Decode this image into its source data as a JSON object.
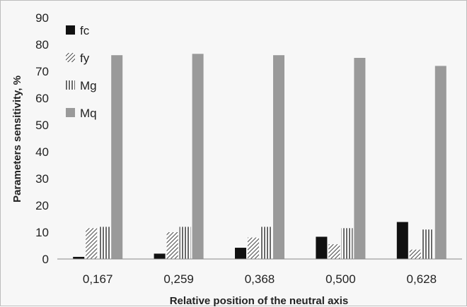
{
  "chart_data": {
    "type": "bar",
    "categories": [
      "0,167",
      "0,259",
      "0,368",
      "0,500",
      "0,628"
    ],
    "series": [
      {
        "name": "fc",
        "values": [
          0.8,
          2.0,
          4.2,
          8.3,
          13.8
        ],
        "pattern": "solid",
        "color": "#111111"
      },
      {
        "name": "fy",
        "values": [
          11.5,
          10.0,
          8.0,
          5.5,
          3.5
        ],
        "pattern": "diagonal",
        "color": "#555555"
      },
      {
        "name": "Mg",
        "values": [
          12.0,
          12.0,
          12.0,
          11.5,
          11.0
        ],
        "pattern": "vertical",
        "color": "#555555"
      },
      {
        "name": "Mq",
        "values": [
          76.0,
          76.5,
          76.0,
          75.0,
          72.0
        ],
        "pattern": "solid",
        "color": "#9a9a9a"
      }
    ],
    "xlabel": "Relative position of the neutral axis",
    "ylabel": "Parameters sensitivity, %",
    "ylim": [
      0,
      90
    ],
    "yticks": [
      "0",
      "10",
      "20",
      "30",
      "40",
      "50",
      "60",
      "70",
      "80",
      "90"
    ],
    "grid": false,
    "legend_position": "top-left"
  }
}
